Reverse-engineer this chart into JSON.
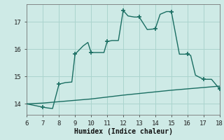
{
  "xlabel": "Humidex (Indice chaleur)",
  "xlim": [
    6,
    18
  ],
  "ylim": [
    13.6,
    17.65
  ],
  "yticks": [
    14,
    15,
    16,
    17
  ],
  "xticks": [
    6,
    7,
    8,
    9,
    10,
    11,
    12,
    13,
    14,
    15,
    16,
    17,
    18
  ],
  "line_color": "#1a6e62",
  "bg_color": "#ceeae6",
  "grid_color": "#aad4ce",
  "line1_x": [
    6.0,
    7.0,
    7.3,
    7.6,
    8.0,
    8.4,
    8.8,
    9.0,
    9.5,
    9.8,
    10.0,
    10.4,
    10.8,
    11.0,
    11.3,
    11.7,
    12.0,
    12.3,
    12.7,
    13.0,
    13.5,
    14.0,
    14.3,
    14.7,
    15.0,
    15.5,
    16.0,
    16.2,
    16.5,
    17.0,
    17.5,
    18.0
  ],
  "line1_y": [
    14.0,
    13.88,
    13.85,
    13.83,
    14.72,
    14.78,
    14.8,
    15.82,
    16.12,
    16.25,
    15.88,
    15.88,
    15.88,
    16.28,
    16.32,
    16.32,
    17.42,
    17.22,
    17.18,
    17.18,
    16.72,
    16.75,
    17.28,
    17.38,
    17.38,
    15.82,
    15.82,
    15.78,
    15.05,
    14.9,
    14.9,
    14.55
  ],
  "line2_x": [
    6,
    7,
    8,
    9,
    10,
    11,
    12,
    13,
    14,
    15,
    16,
    17,
    18
  ],
  "line2_y": [
    14.0,
    14.03,
    14.08,
    14.13,
    14.18,
    14.25,
    14.32,
    14.38,
    14.44,
    14.5,
    14.55,
    14.6,
    14.65
  ],
  "marker_x": [
    7,
    8,
    9,
    10,
    11,
    12,
    13,
    14,
    15,
    16,
    17,
    18
  ],
  "marker_y": [
    13.88,
    14.72,
    15.82,
    15.88,
    16.28,
    17.42,
    17.18,
    16.75,
    17.38,
    15.82,
    14.9,
    14.55
  ]
}
